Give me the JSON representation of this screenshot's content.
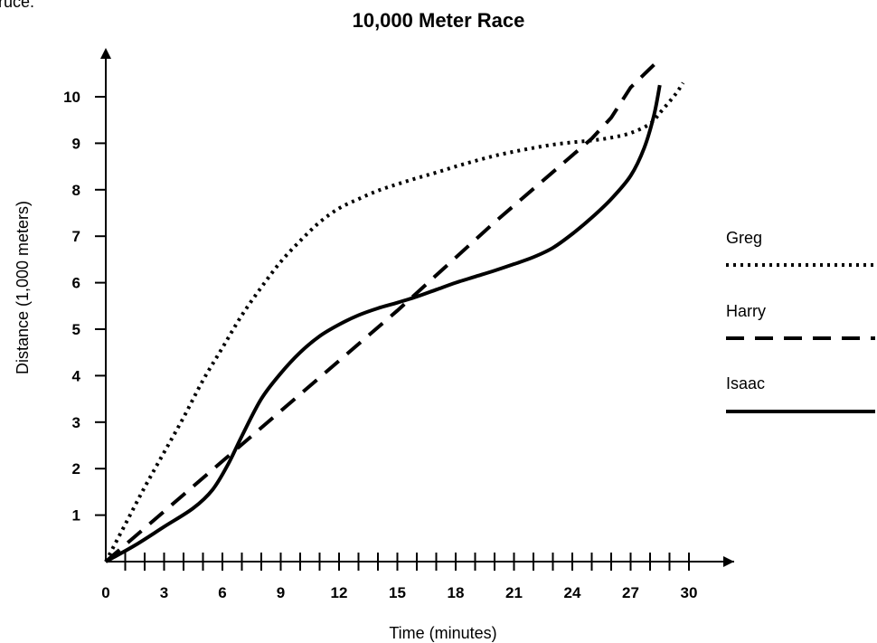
{
  "top_fragment": "ruce.",
  "chart_data": {
    "type": "line",
    "title": "10,000 Meter Race",
    "xlabel": "Time (minutes)",
    "ylabel": "Distance (1,000 meters)",
    "xlim": [
      0,
      31
    ],
    "ylim": [
      0,
      11
    ],
    "x_major_ticks": [
      0,
      3,
      6,
      9,
      12,
      15,
      18,
      21,
      24,
      27,
      30
    ],
    "x_minor_step": 1,
    "y_ticks": [
      1,
      2,
      3,
      4,
      5,
      6,
      7,
      8,
      9,
      10
    ],
    "grid": false,
    "legend_position": "right",
    "series": [
      {
        "name": "Greg",
        "style": "dotted",
        "points": [
          [
            0,
            0
          ],
          [
            1,
            0.8
          ],
          [
            2,
            1.6
          ],
          [
            3,
            2.35
          ],
          [
            4,
            3.1
          ],
          [
            5,
            3.9
          ],
          [
            6,
            4.6
          ],
          [
            7,
            5.3
          ],
          [
            8,
            5.9
          ],
          [
            9,
            6.45
          ],
          [
            10,
            6.9
          ],
          [
            11,
            7.3
          ],
          [
            12,
            7.6
          ],
          [
            13,
            7.8
          ],
          [
            14,
            7.98
          ],
          [
            15,
            8.12
          ],
          [
            16,
            8.25
          ],
          [
            17,
            8.37
          ],
          [
            18,
            8.5
          ],
          [
            19,
            8.62
          ],
          [
            20,
            8.73
          ],
          [
            21,
            8.82
          ],
          [
            22,
            8.9
          ],
          [
            23,
            8.97
          ],
          [
            24,
            9.02
          ],
          [
            25,
            9.06
          ],
          [
            26,
            9.12
          ],
          [
            27,
            9.22
          ],
          [
            28,
            9.42
          ],
          [
            28.6,
            9.7
          ],
          [
            29.3,
            10.05
          ],
          [
            29.7,
            10.3
          ]
        ]
      },
      {
        "name": "Harry",
        "style": "dashed",
        "points": [
          [
            0,
            0
          ],
          [
            5,
            1.8
          ],
          [
            10,
            3.6
          ],
          [
            15,
            5.4
          ],
          [
            20,
            7.3
          ],
          [
            25,
            9.1
          ],
          [
            26,
            9.55
          ],
          [
            27,
            10.2
          ],
          [
            28.6,
            10.85
          ]
        ]
      },
      {
        "name": "Isaac",
        "style": "solid",
        "points": [
          [
            0,
            0
          ],
          [
            1.5,
            0.35
          ],
          [
            3,
            0.75
          ],
          [
            4.5,
            1.15
          ],
          [
            5.5,
            1.55
          ],
          [
            6.3,
            2.1
          ],
          [
            7,
            2.7
          ],
          [
            8,
            3.5
          ],
          [
            9,
            4.05
          ],
          [
            10,
            4.5
          ],
          [
            11,
            4.85
          ],
          [
            12,
            5.1
          ],
          [
            13,
            5.3
          ],
          [
            14,
            5.45
          ],
          [
            15,
            5.57
          ],
          [
            16,
            5.7
          ],
          [
            17,
            5.85
          ],
          [
            18,
            6.0
          ],
          [
            19,
            6.13
          ],
          [
            20,
            6.26
          ],
          [
            21,
            6.4
          ],
          [
            22,
            6.55
          ],
          [
            23,
            6.75
          ],
          [
            24,
            7.05
          ],
          [
            25,
            7.4
          ],
          [
            26,
            7.8
          ],
          [
            27,
            8.3
          ],
          [
            27.7,
            8.9
          ],
          [
            28.2,
            9.6
          ],
          [
            28.5,
            10.25
          ]
        ]
      }
    ]
  },
  "colors": {
    "ink": "#000000",
    "background": "#ffffff"
  }
}
